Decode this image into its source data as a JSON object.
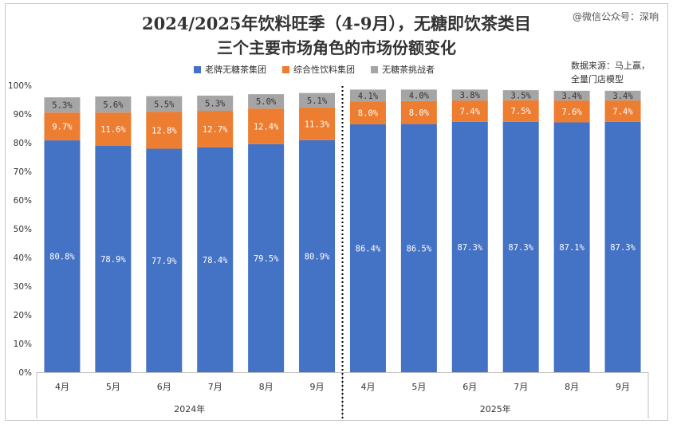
{
  "title_line1": "2024/2025年饮料旺季（4-9月），无糖即饮茶类目",
  "title_line2": "三个主要市场角色的市场份额变化",
  "watermark": "@微信公众号：深响",
  "source_line1": "数据来源：马上赢，",
  "source_line2": "全量门店模型",
  "colors": {
    "series1": "#4472c4",
    "series2": "#ed7d31",
    "series3": "#a5a5a5",
    "label_light": "#ffffff",
    "label_dark": "#ffffff"
  },
  "chart_data": {
    "type": "bar",
    "stacked": true,
    "ylim": [
      0,
      100
    ],
    "yticks": [
      "0%",
      "10%",
      "20%",
      "30%",
      "40%",
      "50%",
      "60%",
      "70%",
      "80%",
      "90%",
      "100%"
    ],
    "categories": [
      "4月",
      "5月",
      "6月",
      "7月",
      "8月",
      "9月",
      "4月",
      "5月",
      "6月",
      "7月",
      "8月",
      "9月"
    ],
    "groups": [
      {
        "label": "2024年",
        "start": 0,
        "count": 6
      },
      {
        "label": "2025年",
        "start": 6,
        "count": 6
      }
    ],
    "series": [
      {
        "name": "老牌无糖茶集团",
        "values": [
          80.8,
          78.9,
          77.9,
          78.4,
          79.5,
          80.9,
          86.4,
          86.5,
          87.3,
          87.3,
          87.1,
          87.3
        ],
        "labels": [
          "80.8%",
          "78.9%",
          "77.9%",
          "78.4%",
          "79.5%",
          "80.9%",
          "86.4%",
          "86.5%",
          "87.3%",
          "87.3%",
          "87.1%",
          "87.3%"
        ]
      },
      {
        "name": "综合性饮料集团",
        "values": [
          9.7,
          11.6,
          12.8,
          12.7,
          12.4,
          11.3,
          8.0,
          8.0,
          7.4,
          7.5,
          7.6,
          7.4
        ],
        "labels": [
          "9.7%",
          "11.6%",
          "12.8%",
          "12.7%",
          "12.4%",
          "11.3%",
          "8.0%",
          "8.0%",
          "7.4%",
          "7.5%",
          "7.6%",
          "7.4%"
        ]
      },
      {
        "name": "无糖茶挑战者",
        "values": [
          5.3,
          5.6,
          5.5,
          5.3,
          5.0,
          5.1,
          4.1,
          4.0,
          3.8,
          3.5,
          3.4,
          3.4
        ],
        "labels": [
          "5.3%",
          "5.6%",
          "5.5%",
          "5.3%",
          "5.0%",
          "5.1%",
          "4.1%",
          "4.0%",
          "3.8%",
          "3.5%",
          "3.4%",
          "3.4%"
        ]
      }
    ],
    "grid": false,
    "legend_position": "top"
  }
}
